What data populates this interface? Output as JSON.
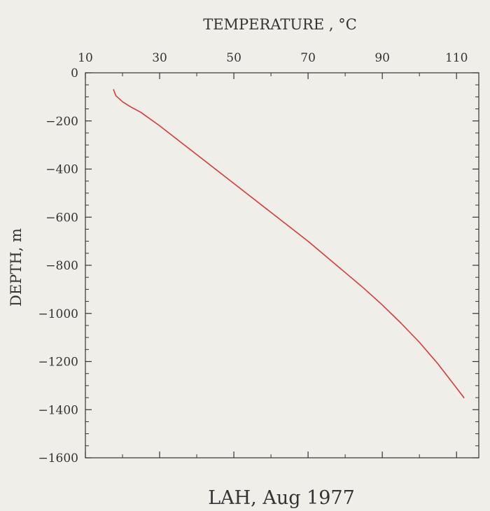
{
  "chart_data": {
    "type": "line",
    "title": "LAH, Aug 1977",
    "xlabel": "TEMPERATURE , °C",
    "ylabel": "DEPTH, m",
    "x_axis_position": "top",
    "xlim": [
      10,
      116
    ],
    "ylim": [
      -1600,
      0
    ],
    "x_ticks": [
      10,
      30,
      50,
      70,
      90,
      110
    ],
    "x_tick_labels": [
      "10",
      "30",
      "50",
      "70",
      "90",
      "110"
    ],
    "y_ticks": [
      0,
      -200,
      -400,
      -600,
      -800,
      -1000,
      -1200,
      -1400,
      -1600
    ],
    "y_tick_labels": [
      "0",
      "−200",
      "−400",
      "−600",
      "−800",
      "−1000",
      "−1200",
      "−1400",
      "−1600"
    ],
    "grid": false,
    "line_color": "#d63a3a",
    "series": [
      {
        "x": [
          17.6,
          18.2,
          20,
          22,
          25,
          30,
          35,
          40,
          45,
          50,
          55,
          60,
          65,
          70,
          75,
          80,
          85,
          90,
          95,
          100,
          105,
          110,
          112
        ],
        "y": [
          -70,
          -95,
          -120,
          -140,
          -165,
          -220,
          -280,
          -340,
          -400,
          -460,
          -520,
          -580,
          -640,
          -700,
          -765,
          -830,
          -895,
          -965,
          -1040,
          -1120,
          -1210,
          -1310,
          -1350
        ]
      }
    ]
  }
}
